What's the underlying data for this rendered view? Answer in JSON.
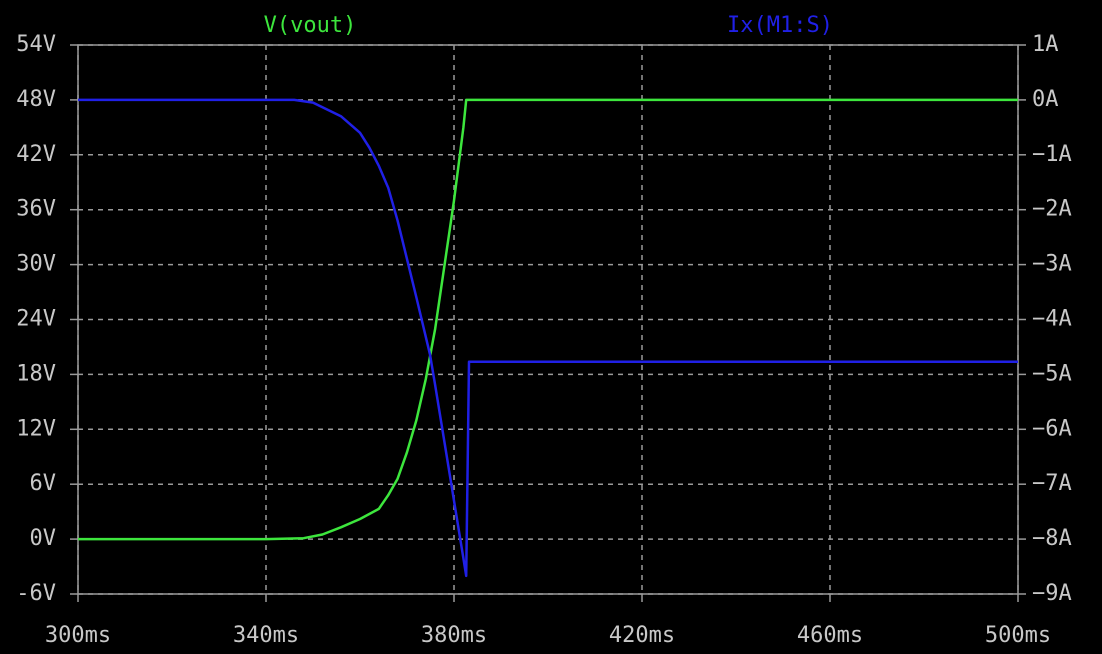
{
  "chart_data": {
    "type": "line",
    "background": "#000000",
    "grid": true,
    "xlim": [
      300,
      500
    ],
    "xticks": [
      {
        "value": 300,
        "label": "300ms"
      },
      {
        "value": 340,
        "label": "340ms"
      },
      {
        "value": 380,
        "label": "380ms"
      },
      {
        "value": 420,
        "label": "420ms"
      },
      {
        "value": 460,
        "label": "460ms"
      },
      {
        "value": 500,
        "label": "500ms"
      }
    ],
    "ylim": [
      -6,
      54
    ],
    "yticks": [
      {
        "value": -6,
        "label": "-6V"
      },
      {
        "value": 0,
        "label": "0V"
      },
      {
        "value": 6,
        "label": "6V"
      },
      {
        "value": 12,
        "label": "12V"
      },
      {
        "value": 18,
        "label": "18V"
      },
      {
        "value": 24,
        "label": "24V"
      },
      {
        "value": 30,
        "label": "30V"
      },
      {
        "value": 36,
        "label": "36V"
      },
      {
        "value": 42,
        "label": "42V"
      },
      {
        "value": 48,
        "label": "48V"
      },
      {
        "value": 54,
        "label": "54V"
      }
    ],
    "y2lim": [
      -9,
      1
    ],
    "y2ticks": [
      {
        "value": -9,
        "label": "−9A"
      },
      {
        "value": -8,
        "label": "−8A"
      },
      {
        "value": -7,
        "label": "−7A"
      },
      {
        "value": -6,
        "label": "−6A"
      },
      {
        "value": -5,
        "label": "−5A"
      },
      {
        "value": -4,
        "label": "−4A"
      },
      {
        "value": -3,
        "label": "−3A"
      },
      {
        "value": -2,
        "label": "−2A"
      },
      {
        "value": -1,
        "label": "−1A"
      },
      {
        "value": 0,
        "label": "0A"
      },
      {
        "value": 1,
        "label": "1A"
      }
    ],
    "series": [
      {
        "name": "V(vout)",
        "color": "#3de63d",
        "x": [
          300,
          340,
          348,
          352,
          356,
          360,
          364,
          366,
          368,
          370,
          372,
          374,
          376,
          378,
          380,
          382,
          382.6,
          390,
          500
        ],
        "values": [
          0,
          0,
          0.1,
          0.5,
          1.3,
          2.2,
          3.3,
          4.8,
          6.6,
          9.5,
          13,
          17.5,
          23,
          30,
          37,
          45,
          48,
          48,
          48
        ]
      },
      {
        "name": "Ix(M1:S)",
        "color": "#2020e6",
        "axis": "y2",
        "x": [
          300,
          346,
          350,
          356,
          360,
          362,
          364,
          366,
          368,
          370,
          372,
          374.9,
          376,
          378,
          380,
          382,
          382.6,
          383.2,
          500
        ],
        "values": [
          0,
          0,
          -0.05,
          -0.3,
          -0.6,
          -0.87,
          -1.2,
          -1.6,
          -2.2,
          -2.9,
          -3.6,
          -4.64,
          -5.2,
          -6.25,
          -7.3,
          -8.35,
          -8.67,
          -4.77,
          -4.77
        ]
      }
    ]
  }
}
